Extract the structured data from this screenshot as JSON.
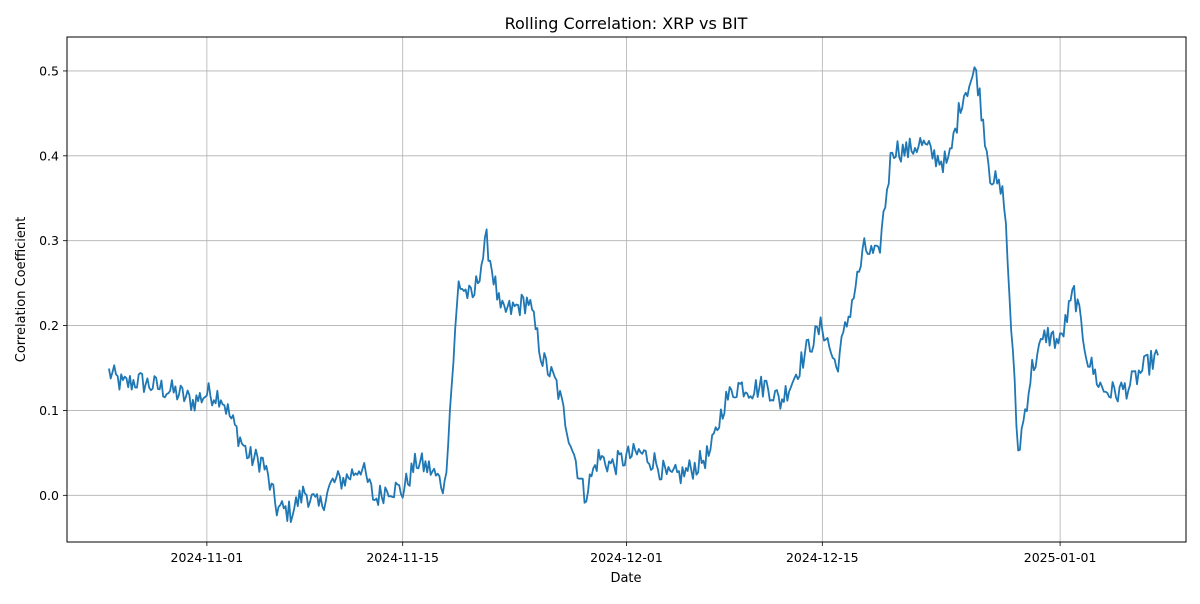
{
  "chart_data": {
    "type": "line",
    "title": "Rolling Correlation: XRP vs BIT",
    "xlabel": "Date",
    "ylabel": "Correlation Coefficient",
    "grid": true,
    "line_color": "#1f77b4",
    "xlim": [
      "2024-10-22",
      "2025-01-10"
    ],
    "ylim": [
      -0.055,
      0.54
    ],
    "x_ticks": [
      "2024-11-01",
      "2024-11-15",
      "2024-12-01",
      "2024-12-15",
      "2025-01-01"
    ],
    "y_ticks": [
      0.0,
      0.1,
      0.2,
      0.3,
      0.4,
      0.5
    ],
    "y_tick_labels": [
      "0.0",
      "0.1",
      "0.2",
      "0.3",
      "0.4",
      "0.5"
    ],
    "series": [
      {
        "x": [
          "2024-10-25",
          "2024-10-26",
          "2024-10-27",
          "2024-10-28",
          "2024-10-29",
          "2024-10-30",
          "2024-10-31",
          "2024-11-01",
          "2024-11-02",
          "2024-11-03",
          "2024-11-04",
          "2024-11-05",
          "2024-11-06",
          "2024-11-07",
          "2024-11-08",
          "2024-11-09",
          "2024-11-10",
          "2024-11-11",
          "2024-11-12",
          "2024-11-13",
          "2024-11-14",
          "2024-11-15",
          "2024-11-16",
          "2024-11-17",
          "2024-11-18",
          "2024-11-19",
          "2024-11-20",
          "2024-11-21",
          "2024-11-22",
          "2024-11-23",
          "2024-11-24",
          "2024-11-25",
          "2024-11-26",
          "2024-11-27",
          "2024-11-28",
          "2024-11-29",
          "2024-11-30",
          "2024-12-01",
          "2024-12-02",
          "2024-12-03",
          "2024-12-04",
          "2024-12-05",
          "2024-12-06",
          "2024-12-07",
          "2024-12-08",
          "2024-12-09",
          "2024-12-10",
          "2024-12-11",
          "2024-12-12",
          "2024-12-13",
          "2024-12-14",
          "2024-12-15",
          "2024-12-16",
          "2024-12-17",
          "2024-12-18",
          "2024-12-19",
          "2024-12-20",
          "2024-12-21",
          "2024-12-22",
          "2024-12-23",
          "2024-12-24",
          "2024-12-25",
          "2024-12-26",
          "2024-12-27",
          "2024-12-28",
          "2024-12-29",
          "2024-12-30",
          "2024-12-31",
          "2025-01-01",
          "2025-01-02",
          "2025-01-03",
          "2025-01-04",
          "2025-01-05",
          "2025-01-06",
          "2025-01-07",
          "2025-01-08"
        ],
        "values": [
          0.145,
          0.13,
          0.135,
          0.13,
          0.125,
          0.12,
          0.11,
          0.12,
          0.118,
          0.08,
          0.045,
          0.04,
          -0.015,
          -0.02,
          0.005,
          -0.015,
          0.015,
          0.02,
          0.035,
          -0.005,
          0.01,
          0.005,
          0.04,
          0.03,
          0.01,
          0.25,
          0.23,
          0.3,
          0.215,
          0.22,
          0.23,
          0.16,
          0.13,
          0.065,
          0.0,
          0.045,
          0.035,
          0.045,
          0.05,
          0.04,
          0.02,
          0.025,
          0.035,
          0.05,
          0.11,
          0.13,
          0.125,
          0.13,
          0.11,
          0.14,
          0.175,
          0.2,
          0.15,
          0.22,
          0.29,
          0.28,
          0.41,
          0.405,
          0.415,
          0.4,
          0.39,
          0.47,
          0.5,
          0.38,
          0.35,
          0.05,
          0.15,
          0.19,
          0.18,
          0.24,
          0.16,
          0.125,
          0.12,
          0.13,
          0.15,
          0.165
        ],
        "label_note": ""
      }
    ]
  }
}
